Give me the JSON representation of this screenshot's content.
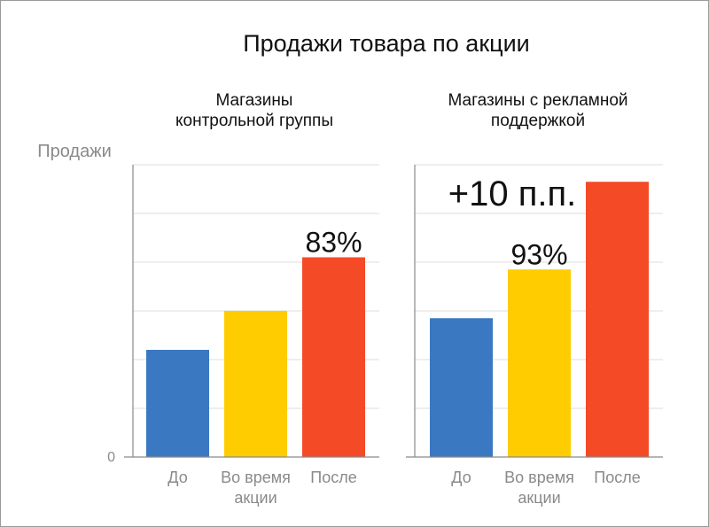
{
  "title": "Продажи товара по акции",
  "ylabel": "Продажи",
  "zero_label": "0",
  "colors": {
    "before": "#3b78c2",
    "during": "#ffcc00",
    "after": "#f44a26"
  },
  "chart_data": [
    {
      "type": "bar",
      "title_lines": [
        "Магазины",
        "контрольной группы"
      ],
      "categories": [
        [
          "До"
        ],
        [
          "Во время",
          "акции"
        ],
        [
          "После"
        ]
      ],
      "values": [
        22,
        30,
        41
      ],
      "ylim": [
        0,
        60
      ],
      "grid": true,
      "annotations": [
        {
          "category_index": 2,
          "text": "83%"
        }
      ]
    },
    {
      "type": "bar",
      "title_lines": [
        "Магазины с рекламной",
        "поддержкой"
      ],
      "categories": [
        [
          "До"
        ],
        [
          "Во время",
          "акции"
        ],
        [
          "После"
        ]
      ],
      "values": [
        28.5,
        38.5,
        56.5
      ],
      "ylim": [
        0,
        60
      ],
      "grid": true,
      "annotations": [
        {
          "category_index": 1,
          "text": "93%"
        }
      ],
      "increase_label": "+10 п.п."
    }
  ]
}
